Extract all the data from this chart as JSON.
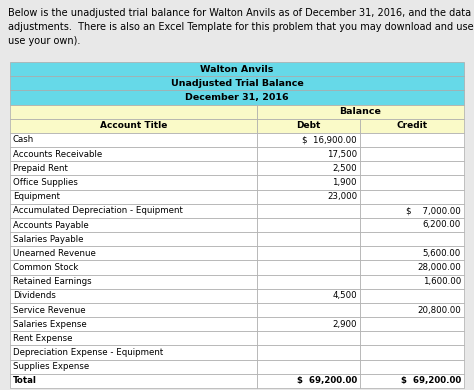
{
  "title1": "Walton Anvils",
  "title2": "Unadjusted Trial Balance",
  "title3": "December 31, 2016",
  "header_bg": "#66D9E8",
  "subheader_bg": "#FAFAC8",
  "row_bg": "#FFFFFF",
  "text_color": "#000000",
  "border_color": "#AAAAAA",
  "bg_color": "#E8E8E8",
  "intro_text_line1": "Below is the unadjusted trial balance for Walton Anvils as of December 31, 2016, and the data for the",
  "intro_text_line2": "adjustments.  There is also an Excel Template for this problem that you may download and use (or you may",
  "intro_text_line3": "use your own).",
  "col_headers": [
    "Account Title",
    "Debt",
    "Credit"
  ],
  "balance_header": "Balance",
  "rows": [
    {
      "account": "Cash",
      "debt": "$  16,900.00",
      "credit": ""
    },
    {
      "account": "Accounts Receivable",
      "debt": "17,500",
      "credit": ""
    },
    {
      "account": "Prepaid Rent",
      "debt": "2,500",
      "credit": ""
    },
    {
      "account": "Office Supplies",
      "debt": "1,900",
      "credit": ""
    },
    {
      "account": "Equipment",
      "debt": "23,000",
      "credit": ""
    },
    {
      "account": "Accumulated Depreciation - Equipment",
      "debt": "",
      "credit": "$    7,000.00"
    },
    {
      "account": "Accounts Payable",
      "debt": "",
      "credit": "6,200.00"
    },
    {
      "account": "Salaries Payable",
      "debt": "",
      "credit": ""
    },
    {
      "account": "Unearned Revenue",
      "debt": "",
      "credit": "5,600.00"
    },
    {
      "account": "Common Stock",
      "debt": "",
      "credit": "28,000.00"
    },
    {
      "account": "Retained Earnings",
      "debt": "",
      "credit": "1,600.00"
    },
    {
      "account": "Dividends",
      "debt": "4,500",
      "credit": ""
    },
    {
      "account": "Service Revenue",
      "debt": "",
      "credit": "20,800.00"
    },
    {
      "account": "Salaries Expense",
      "debt": "2,900",
      "credit": ""
    },
    {
      "account": "Rent Expense",
      "debt": "",
      "credit": ""
    },
    {
      "account": "Depreciation Expense - Equipment",
      "debt": "",
      "credit": ""
    },
    {
      "account": "Supplies Expense",
      "debt": "",
      "credit": ""
    },
    {
      "account": "Total",
      "debt": "$  69,200.00",
      "credit": "$  69,200.00"
    }
  ]
}
